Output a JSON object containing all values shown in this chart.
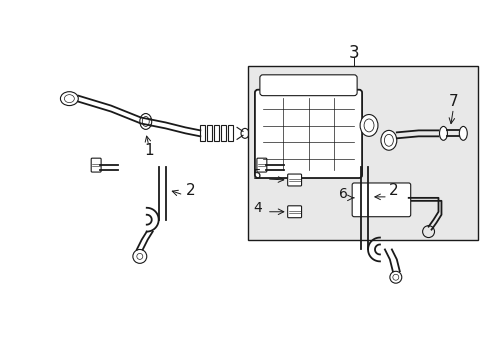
{
  "background_color": "#ffffff",
  "line_color": "#1a1a1a",
  "box_fill": "#e8e8e8",
  "label_color": "#000000",
  "font_size": 10,
  "arrow_lw": 0.7,
  "main_lw": 1.3,
  "thin_lw": 0.8
}
